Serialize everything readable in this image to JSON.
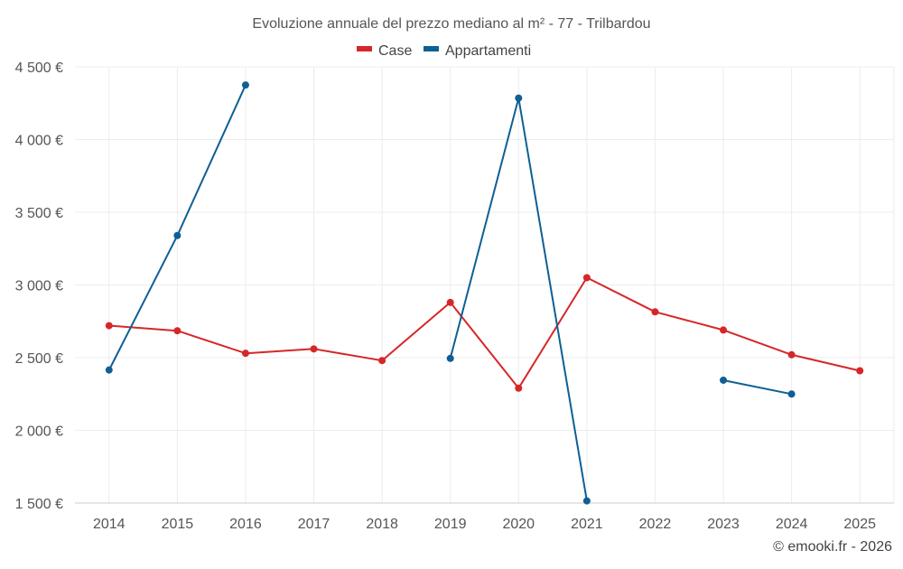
{
  "chart_data": {
    "type": "line",
    "title": "Evoluzione annuale del prezzo mediano al m² - 77 - Trilbardou",
    "xlabel": "",
    "ylabel": "",
    "categories": [
      "2014",
      "2015",
      "2016",
      "2017",
      "2018",
      "2019",
      "2020",
      "2021",
      "2022",
      "2023",
      "2024",
      "2025"
    ],
    "ylim": [
      1500,
      4500
    ],
    "y_ticks": [
      1500,
      2000,
      2500,
      3000,
      3500,
      4000,
      4500
    ],
    "y_tick_labels": [
      "1 500 €",
      "2 000 €",
      "2 500 €",
      "3 000 €",
      "3 500 €",
      "4 000 €",
      "4 500 €"
    ],
    "grid": true,
    "legend_position": "top-center",
    "series": [
      {
        "name": "Case",
        "color": "#d62728",
        "values": [
          2720,
          2685,
          2530,
          2560,
          2480,
          2880,
          2290,
          3050,
          2815,
          2690,
          2520,
          2410
        ]
      },
      {
        "name": "Appartamenti",
        "color": "#0f5f94",
        "values": [
          2415,
          3340,
          4375,
          null,
          null,
          2495,
          4285,
          1515,
          null,
          2345,
          2250,
          null
        ]
      }
    ],
    "credit": "© emooki.fr - 2026"
  }
}
